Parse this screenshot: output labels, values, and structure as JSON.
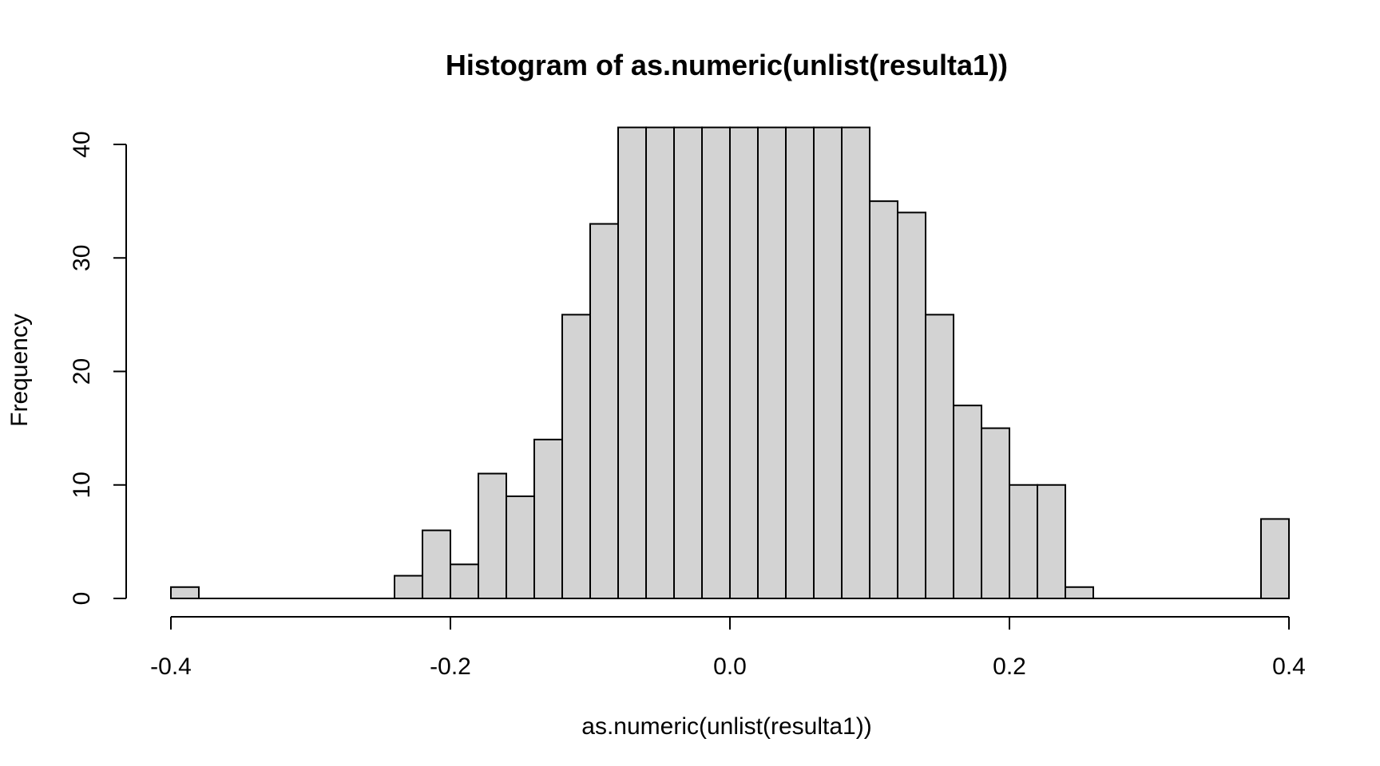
{
  "chart_data": {
    "type": "bar",
    "title": "Histogram of as.numeric(unlist(resulta1))",
    "xlabel": "as.numeric(unlist(resulta1))",
    "ylabel": "Frequency",
    "bin_width": 0.02,
    "xlim": [
      -0.4,
      0.4
    ],
    "ylim": [
      0,
      40
    ],
    "x_ticks": [
      -0.4,
      -0.2,
      0.0,
      0.2,
      0.4
    ],
    "x_tick_labels": [
      "-0.4",
      "-0.2",
      "0.0",
      "0.2",
      "0.4"
    ],
    "y_ticks": [
      0,
      10,
      20,
      30,
      40
    ],
    "y_tick_labels": [
      "0",
      "10",
      "20",
      "30",
      "40"
    ],
    "bar_fill": "#d3d3d3",
    "bar_stroke": "#000000",
    "clipped_above": 41.5,
    "bins": [
      {
        "start": -0.4,
        "end": -0.38,
        "count": 1
      },
      {
        "start": -0.24,
        "end": -0.22,
        "count": 2
      },
      {
        "start": -0.22,
        "end": -0.2,
        "count": 6
      },
      {
        "start": -0.2,
        "end": -0.18,
        "count": 3
      },
      {
        "start": -0.18,
        "end": -0.16,
        "count": 11
      },
      {
        "start": -0.16,
        "end": -0.14,
        "count": 9
      },
      {
        "start": -0.14,
        "end": -0.12,
        "count": 14
      },
      {
        "start": -0.12,
        "end": -0.1,
        "count": 25
      },
      {
        "start": -0.1,
        "end": -0.08,
        "count": 33
      },
      {
        "start": -0.08,
        "end": -0.06,
        "count": 42
      },
      {
        "start": -0.06,
        "end": -0.04,
        "count": 42
      },
      {
        "start": -0.04,
        "end": -0.02,
        "count": 42
      },
      {
        "start": -0.02,
        "end": 0.0,
        "count": 42
      },
      {
        "start": 0.0,
        "end": 0.02,
        "count": 42
      },
      {
        "start": 0.02,
        "end": 0.04,
        "count": 42
      },
      {
        "start": 0.04,
        "end": 0.06,
        "count": 42
      },
      {
        "start": 0.06,
        "end": 0.08,
        "count": 42
      },
      {
        "start": 0.08,
        "end": 0.1,
        "count": 42
      },
      {
        "start": 0.1,
        "end": 0.12,
        "count": 35
      },
      {
        "start": 0.12,
        "end": 0.14,
        "count": 34
      },
      {
        "start": 0.14,
        "end": 0.16,
        "count": 25
      },
      {
        "start": 0.16,
        "end": 0.18,
        "count": 17
      },
      {
        "start": 0.18,
        "end": 0.2,
        "count": 15
      },
      {
        "start": 0.2,
        "end": 0.22,
        "count": 10
      },
      {
        "start": 0.22,
        "end": 0.24,
        "count": 10
      },
      {
        "start": 0.24,
        "end": 0.26,
        "count": 1
      },
      {
        "start": 0.38,
        "end": 0.4,
        "count": 7
      }
    ]
  }
}
